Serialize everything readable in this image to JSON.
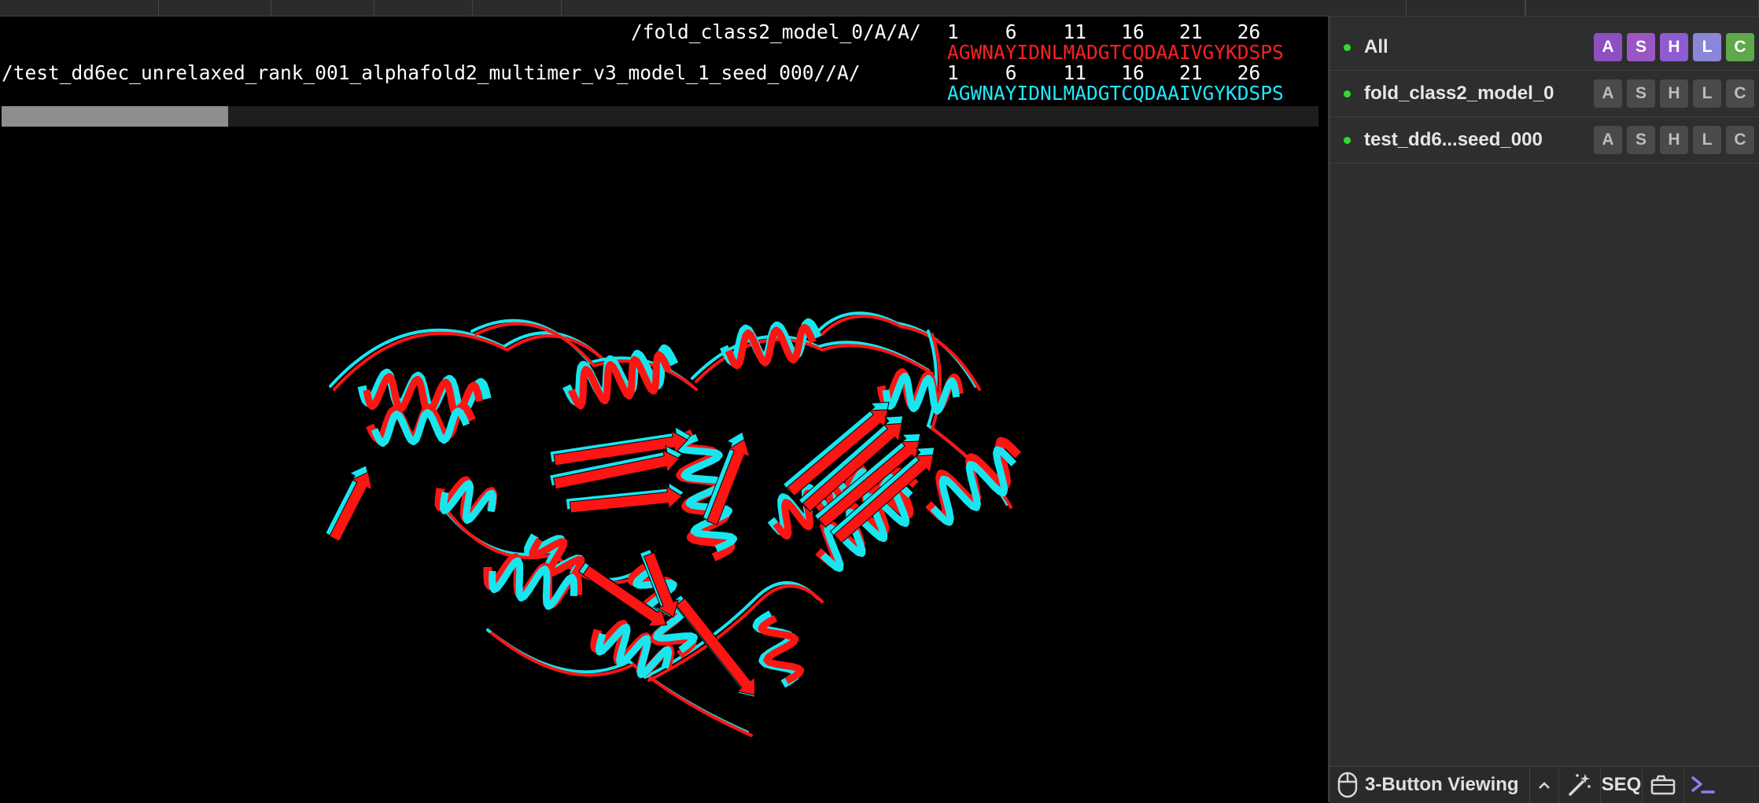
{
  "sequence": {
    "row1": {
      "name": "/fold_class2_model_0/A/A/",
      "numbers": "1    6    11   16   21   26",
      "residues": "AGWNAYIDNLMADGTCQDAAIVGYKDSPS"
    },
    "row2": {
      "name": "/test_dd6ec_unrelaxed_rank_001_alphafold2_multimer_v3_model_1_seed_000//A/",
      "numbers": "1    6    11   16   21   26",
      "residues": "AGWNAYIDNLMADGTCQDAAIVGYKDSPS"
    }
  },
  "objects": [
    {
      "name": "All",
      "buttons": [
        "A",
        "S",
        "H",
        "L",
        "C"
      ],
      "colored": true
    },
    {
      "name": "fold_class2_model_0",
      "buttons": [
        "A",
        "S",
        "H",
        "L",
        "C"
      ],
      "colored": false
    },
    {
      "name": "test_dd6...seed_000",
      "buttons": [
        "A",
        "S",
        "H",
        "L",
        "C"
      ],
      "colored": false
    }
  ],
  "button_colors": {
    "A": "#8e4fc0",
    "S": "#9a57c4",
    "H": "#8f5bd0",
    "L": "#8c86d8",
    "C": "#5fa84b"
  },
  "toolbar": {
    "mouse_mode": "3-Button Viewing",
    "seq_label": "SEQ"
  },
  "colors": {
    "model_red": "#ff1414",
    "model_cyan": "#18e6ee",
    "enabled_dot": "#2fdc2f"
  }
}
